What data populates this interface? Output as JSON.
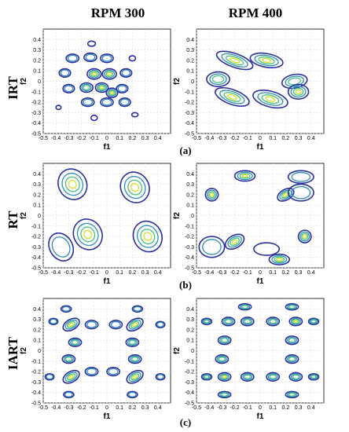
{
  "column_titles": [
    "RPM 300",
    "RPM 400"
  ],
  "row_labels": [
    "IRT",
    "RT",
    "IART"
  ],
  "panel_labels": [
    "(a)",
    "(b)",
    "(c)"
  ],
  "x_axis_title": "f1",
  "y_axis_title": "f2",
  "x_tick_labels": [
    "-0.5",
    "-0.4",
    "-0.3",
    "-0.2",
    "-0.1",
    "0",
    "0.1",
    "0.2",
    "0.3",
    "0.4"
  ],
  "y_tick_labels": [
    "-0.5",
    "-0.4",
    "-0.3",
    "-0.2",
    "-0.1",
    "0",
    "0.1",
    "0.2",
    "0.3",
    "0.4"
  ],
  "colors": {
    "level_1": "#2b2f9c",
    "level_2": "#2e8fb8",
    "level_3": "#49c27a",
    "level_4": "#d9e21f"
  },
  "chart_data": [
    {
      "type": "contour",
      "row": "IRT",
      "column": "RPM 300",
      "xlabel": "f1",
      "ylabel": "f2",
      "xlim": [
        -0.5,
        0.5
      ],
      "ylim": [
        -0.5,
        0.5
      ],
      "grid": true,
      "blobs": [
        {
          "x": -0.27,
          "y": 0.22,
          "rx": 0.05,
          "ry": 0.04,
          "angle": 0,
          "levels": 2
        },
        {
          "x": -0.13,
          "y": 0.23,
          "rx": 0.05,
          "ry": 0.04,
          "angle": 0,
          "levels": 2
        },
        {
          "x": 0.0,
          "y": 0.22,
          "rx": 0.05,
          "ry": 0.04,
          "angle": 0,
          "levels": 2
        },
        {
          "x": -0.33,
          "y": 0.08,
          "rx": 0.045,
          "ry": 0.04,
          "angle": 0,
          "levels": 2
        },
        {
          "x": 0.15,
          "y": 0.08,
          "rx": 0.045,
          "ry": 0.04,
          "angle": 0,
          "levels": 2
        },
        {
          "x": -0.3,
          "y": -0.07,
          "rx": 0.045,
          "ry": 0.04,
          "angle": 0,
          "levels": 2
        },
        {
          "x": 0.12,
          "y": -0.07,
          "rx": 0.045,
          "ry": 0.04,
          "angle": 0,
          "levels": 2
        },
        {
          "x": -0.15,
          "y": -0.2,
          "rx": 0.05,
          "ry": 0.04,
          "angle": 0,
          "levels": 2
        },
        {
          "x": 0.0,
          "y": -0.2,
          "rx": 0.05,
          "ry": 0.04,
          "angle": 0,
          "levels": 2
        },
        {
          "x": 0.14,
          "y": -0.2,
          "rx": 0.045,
          "ry": 0.04,
          "angle": 0,
          "levels": 2
        },
        {
          "x": -0.1,
          "y": 0.07,
          "rx": 0.055,
          "ry": 0.05,
          "angle": 0,
          "levels": 4
        },
        {
          "x": 0.02,
          "y": 0.07,
          "rx": 0.055,
          "ry": 0.05,
          "angle": 0,
          "levels": 4
        },
        {
          "x": -0.16,
          "y": -0.06,
          "rx": 0.05,
          "ry": 0.045,
          "angle": 0,
          "levels": 3
        },
        {
          "x": -0.04,
          "y": -0.06,
          "rx": 0.05,
          "ry": 0.045,
          "angle": 0,
          "levels": 4
        },
        {
          "x": 0.04,
          "y": -0.11,
          "rx": 0.045,
          "ry": 0.045,
          "angle": 0,
          "levels": 4
        },
        {
          "x": -0.12,
          "y": 0.36,
          "rx": 0.03,
          "ry": 0.025,
          "angle": 0,
          "levels": 1
        },
        {
          "x": 0.2,
          "y": 0.22,
          "rx": 0.025,
          "ry": 0.025,
          "angle": 0,
          "levels": 1
        },
        {
          "x": -0.38,
          "y": -0.25,
          "rx": 0.02,
          "ry": 0.02,
          "angle": 0,
          "levels": 1
        },
        {
          "x": -0.1,
          "y": -0.35,
          "rx": 0.025,
          "ry": 0.025,
          "angle": 0,
          "levels": 1
        },
        {
          "x": 0.22,
          "y": -0.32,
          "rx": 0.025,
          "ry": 0.02,
          "angle": 0,
          "levels": 1
        }
      ]
    },
    {
      "type": "contour",
      "row": "IRT",
      "column": "RPM 400",
      "xlabel": "f1",
      "ylabel": "f2",
      "xlim": [
        -0.5,
        0.5
      ],
      "ylim": [
        -0.5,
        0.5
      ],
      "grid": true,
      "blobs": [
        {
          "x": -0.2,
          "y": 0.2,
          "rx": 0.15,
          "ry": 0.065,
          "angle": -20,
          "levels": 4
        },
        {
          "x": 0.05,
          "y": 0.2,
          "rx": 0.13,
          "ry": 0.065,
          "angle": -10,
          "levels": 4
        },
        {
          "x": -0.33,
          "y": 0.02,
          "rx": 0.09,
          "ry": 0.07,
          "angle": 0,
          "levels": 3
        },
        {
          "x": 0.27,
          "y": 0.0,
          "rx": 0.1,
          "ry": 0.065,
          "angle": 10,
          "levels": 3
        },
        {
          "x": -0.22,
          "y": -0.15,
          "rx": 0.14,
          "ry": 0.07,
          "angle": -20,
          "levels": 4
        },
        {
          "x": 0.08,
          "y": -0.17,
          "rx": 0.14,
          "ry": 0.075,
          "angle": -15,
          "levels": 4
        },
        {
          "x": 0.3,
          "y": -0.1,
          "rx": 0.08,
          "ry": 0.07,
          "angle": 0,
          "levels": 4
        }
      ]
    },
    {
      "type": "contour",
      "row": "RT",
      "column": "RPM 300",
      "xlabel": "f1",
      "ylabel": "f2",
      "xlim": [
        -0.5,
        0.5
      ],
      "ylim": [
        -0.5,
        0.5
      ],
      "grid": true,
      "blobs": [
        {
          "x": -0.27,
          "y": 0.3,
          "rx": 0.11,
          "ry": 0.15,
          "angle": 30,
          "levels": 4
        },
        {
          "x": 0.22,
          "y": 0.27,
          "rx": 0.11,
          "ry": 0.15,
          "angle": 30,
          "levels": 4
        },
        {
          "x": -0.15,
          "y": -0.18,
          "rx": 0.11,
          "ry": 0.15,
          "angle": 30,
          "levels": 4
        },
        {
          "x": 0.32,
          "y": -0.2,
          "rx": 0.11,
          "ry": 0.15,
          "angle": 30,
          "levels": 4
        },
        {
          "x": -0.36,
          "y": -0.3,
          "rx": 0.09,
          "ry": 0.14,
          "angle": 30,
          "levels": 2
        }
      ]
    },
    {
      "type": "contour",
      "row": "RT",
      "column": "RPM 400",
      "xlabel": "f1",
      "ylabel": "f2",
      "xlim": [
        -0.5,
        0.5
      ],
      "ylim": [
        -0.5,
        0.5
      ],
      "grid": true,
      "blobs": [
        {
          "x": -0.12,
          "y": 0.38,
          "rx": 0.08,
          "ry": 0.05,
          "angle": 0,
          "levels": 4
        },
        {
          "x": 0.32,
          "y": 0.37,
          "rx": 0.1,
          "ry": 0.06,
          "angle": 0,
          "levels": 2
        },
        {
          "x": -0.38,
          "y": 0.2,
          "rx": 0.05,
          "ry": 0.06,
          "angle": 0,
          "levels": 4
        },
        {
          "x": 0.2,
          "y": 0.2,
          "rx": 0.07,
          "ry": 0.05,
          "angle": 30,
          "levels": 4
        },
        {
          "x": 0.32,
          "y": 0.22,
          "rx": 0.1,
          "ry": 0.08,
          "angle": 0,
          "levels": 2
        },
        {
          "x": -0.38,
          "y": -0.3,
          "rx": 0.1,
          "ry": 0.1,
          "angle": 0,
          "levels": 2
        },
        {
          "x": -0.2,
          "y": -0.25,
          "rx": 0.08,
          "ry": 0.06,
          "angle": 30,
          "levels": 4
        },
        {
          "x": 0.35,
          "y": -0.2,
          "rx": 0.05,
          "ry": 0.06,
          "angle": 0,
          "levels": 4
        },
        {
          "x": 0.15,
          "y": -0.42,
          "rx": 0.08,
          "ry": 0.05,
          "angle": 0,
          "levels": 4
        },
        {
          "x": 0.05,
          "y": -0.32,
          "rx": 0.1,
          "ry": 0.06,
          "angle": 0,
          "levels": 1
        }
      ]
    },
    {
      "type": "contour",
      "row": "IART",
      "column": "RPM 300",
      "xlabel": "f1",
      "ylabel": "f2",
      "xlim": [
        -0.5,
        0.5
      ],
      "ylim": [
        -0.5,
        0.5
      ],
      "grid": true,
      "blobs": [
        {
          "x": -0.32,
          "y": 0.4,
          "rx": 0.04,
          "ry": 0.03,
          "angle": 0,
          "levels": 2
        },
        {
          "x": 0.24,
          "y": 0.4,
          "rx": 0.04,
          "ry": 0.03,
          "angle": 0,
          "levels": 2
        },
        {
          "x": -0.42,
          "y": 0.28,
          "rx": 0.035,
          "ry": 0.03,
          "angle": 0,
          "levels": 2
        },
        {
          "x": -0.28,
          "y": 0.25,
          "rx": 0.07,
          "ry": 0.05,
          "angle": 30,
          "levels": 4
        },
        {
          "x": -0.12,
          "y": 0.25,
          "rx": 0.05,
          "ry": 0.04,
          "angle": 0,
          "levels": 2
        },
        {
          "x": 0.07,
          "y": 0.25,
          "rx": 0.05,
          "ry": 0.04,
          "angle": 0,
          "levels": 2
        },
        {
          "x": 0.22,
          "y": 0.25,
          "rx": 0.07,
          "ry": 0.05,
          "angle": 30,
          "levels": 4
        },
        {
          "x": 0.42,
          "y": 0.25,
          "rx": 0.035,
          "ry": 0.03,
          "angle": 0,
          "levels": 2
        },
        {
          "x": -0.25,
          "y": 0.08,
          "rx": 0.05,
          "ry": 0.04,
          "angle": 0,
          "levels": 3
        },
        {
          "x": 0.2,
          "y": 0.08,
          "rx": 0.05,
          "ry": 0.04,
          "angle": 0,
          "levels": 3
        },
        {
          "x": -0.3,
          "y": -0.08,
          "rx": 0.05,
          "ry": 0.04,
          "angle": 0,
          "levels": 3
        },
        {
          "x": 0.22,
          "y": -0.08,
          "rx": 0.05,
          "ry": 0.04,
          "angle": 0,
          "levels": 3
        },
        {
          "x": -0.12,
          "y": -0.2,
          "rx": 0.05,
          "ry": 0.04,
          "angle": 0,
          "levels": 2
        },
        {
          "x": 0.05,
          "y": -0.2,
          "rx": 0.05,
          "ry": 0.04,
          "angle": 0,
          "levels": 2
        },
        {
          "x": -0.28,
          "y": -0.25,
          "rx": 0.07,
          "ry": 0.05,
          "angle": 30,
          "levels": 4
        },
        {
          "x": 0.22,
          "y": -0.25,
          "rx": 0.07,
          "ry": 0.05,
          "angle": 30,
          "levels": 4
        },
        {
          "x": -0.45,
          "y": -0.25,
          "rx": 0.035,
          "ry": 0.03,
          "angle": 0,
          "levels": 2
        },
        {
          "x": 0.42,
          "y": -0.25,
          "rx": 0.035,
          "ry": 0.03,
          "angle": 0,
          "levels": 2
        },
        {
          "x": -0.3,
          "y": -0.42,
          "rx": 0.04,
          "ry": 0.03,
          "angle": 0,
          "levels": 2
        },
        {
          "x": 0.2,
          "y": -0.42,
          "rx": 0.04,
          "ry": 0.03,
          "angle": 0,
          "levels": 2
        }
      ]
    },
    {
      "type": "contour",
      "row": "IART",
      "column": "RPM 400",
      "xlabel": "f1",
      "ylabel": "f2",
      "xlim": [
        -0.5,
        0.5
      ],
      "ylim": [
        -0.5,
        0.5
      ],
      "grid": true,
      "blobs": [
        {
          "x": -0.12,
          "y": 0.42,
          "rx": 0.05,
          "ry": 0.03,
          "angle": 0,
          "levels": 3
        },
        {
          "x": 0.25,
          "y": 0.42,
          "rx": 0.05,
          "ry": 0.03,
          "angle": 0,
          "levels": 3
        },
        {
          "x": -0.42,
          "y": 0.28,
          "rx": 0.04,
          "ry": 0.03,
          "angle": 0,
          "levels": 3
        },
        {
          "x": -0.25,
          "y": 0.28,
          "rx": 0.05,
          "ry": 0.04,
          "angle": 0,
          "levels": 3
        },
        {
          "x": -0.1,
          "y": 0.28,
          "rx": 0.05,
          "ry": 0.04,
          "angle": 0,
          "levels": 3
        },
        {
          "x": 0.1,
          "y": 0.28,
          "rx": 0.05,
          "ry": 0.04,
          "angle": 0,
          "levels": 3
        },
        {
          "x": 0.28,
          "y": 0.28,
          "rx": 0.05,
          "ry": 0.04,
          "angle": 0,
          "levels": 4
        },
        {
          "x": 0.42,
          "y": 0.28,
          "rx": 0.04,
          "ry": 0.03,
          "angle": 0,
          "levels": 3
        },
        {
          "x": -0.28,
          "y": 0.1,
          "rx": 0.05,
          "ry": 0.04,
          "angle": 0,
          "levels": 3
        },
        {
          "x": 0.25,
          "y": 0.1,
          "rx": 0.05,
          "ry": 0.04,
          "angle": 0,
          "levels": 3
        },
        {
          "x": -0.3,
          "y": -0.08,
          "rx": 0.05,
          "ry": 0.04,
          "angle": 0,
          "levels": 3
        },
        {
          "x": 0.25,
          "y": -0.08,
          "rx": 0.05,
          "ry": 0.04,
          "angle": 0,
          "levels": 3
        },
        {
          "x": -0.42,
          "y": -0.25,
          "rx": 0.04,
          "ry": 0.03,
          "angle": 0,
          "levels": 3
        },
        {
          "x": -0.28,
          "y": -0.25,
          "rx": 0.05,
          "ry": 0.04,
          "angle": 0,
          "levels": 4
        },
        {
          "x": -0.1,
          "y": -0.25,
          "rx": 0.05,
          "ry": 0.04,
          "angle": 0,
          "levels": 3
        },
        {
          "x": 0.1,
          "y": -0.25,
          "rx": 0.05,
          "ry": 0.04,
          "angle": 0,
          "levels": 3
        },
        {
          "x": 0.28,
          "y": -0.25,
          "rx": 0.05,
          "ry": 0.04,
          "angle": 0,
          "levels": 3
        },
        {
          "x": 0.42,
          "y": -0.25,
          "rx": 0.04,
          "ry": 0.03,
          "angle": 0,
          "levels": 3
        },
        {
          "x": -0.28,
          "y": -0.42,
          "rx": 0.05,
          "ry": 0.03,
          "angle": 0,
          "levels": 3
        },
        {
          "x": 0.25,
          "y": -0.42,
          "rx": 0.05,
          "ry": 0.03,
          "angle": 0,
          "levels": 3
        }
      ]
    }
  ]
}
